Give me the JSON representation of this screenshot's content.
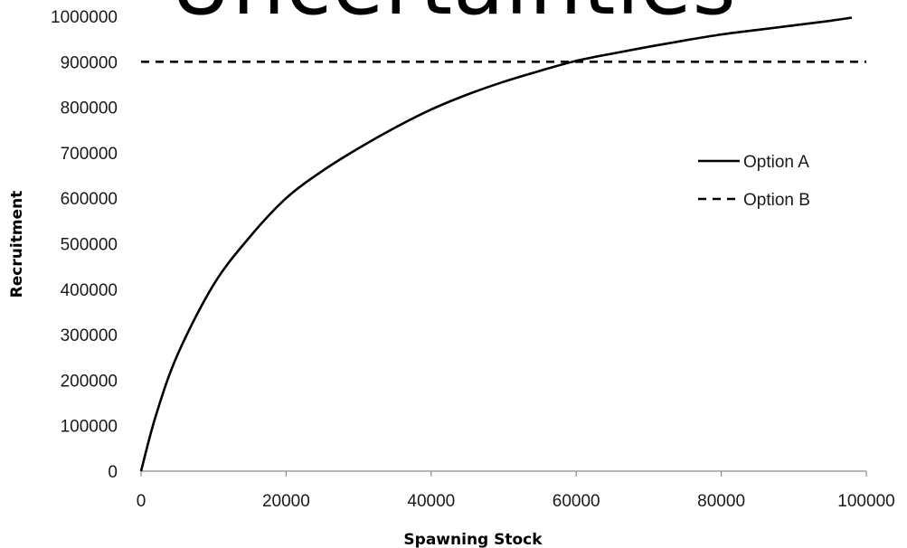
{
  "slide": {
    "title": "Uncertainties"
  },
  "chart_data": {
    "type": "line",
    "xlabel": "Spawning Stock",
    "ylabel": "Recruitment",
    "xlim": [
      0,
      100000
    ],
    "ylim": [
      0,
      1000000
    ],
    "x_ticks": [
      "0",
      "20000",
      "40000",
      "60000",
      "80000",
      "100000"
    ],
    "y_ticks": [
      "0",
      "100000",
      "200000",
      "300000",
      "400000",
      "500000",
      "600000",
      "700000",
      "800000",
      "900000",
      "1000000"
    ],
    "grid": false,
    "legend_position": "right",
    "series": [
      {
        "name": "Option A",
        "style": "solid",
        "color": "#000000",
        "x": [
          0,
          2000,
          5000,
          10000,
          15000,
          20000,
          25000,
          30000,
          35000,
          40000,
          45000,
          50000,
          55000,
          60000,
          65000,
          70000,
          75000,
          80000,
          85000,
          90000,
          95000,
          98000
        ],
        "y": [
          0,
          120000,
          255000,
          410000,
          515000,
          600000,
          660000,
          710000,
          755000,
          795000,
          828000,
          856000,
          880000,
          902000,
          918000,
          933000,
          947000,
          960000,
          970000,
          980000,
          990000,
          997000
        ]
      },
      {
        "name": "Option B",
        "style": "dashed",
        "color": "#000000",
        "x": [
          0,
          100000
        ],
        "y": [
          900000,
          900000
        ]
      }
    ]
  }
}
